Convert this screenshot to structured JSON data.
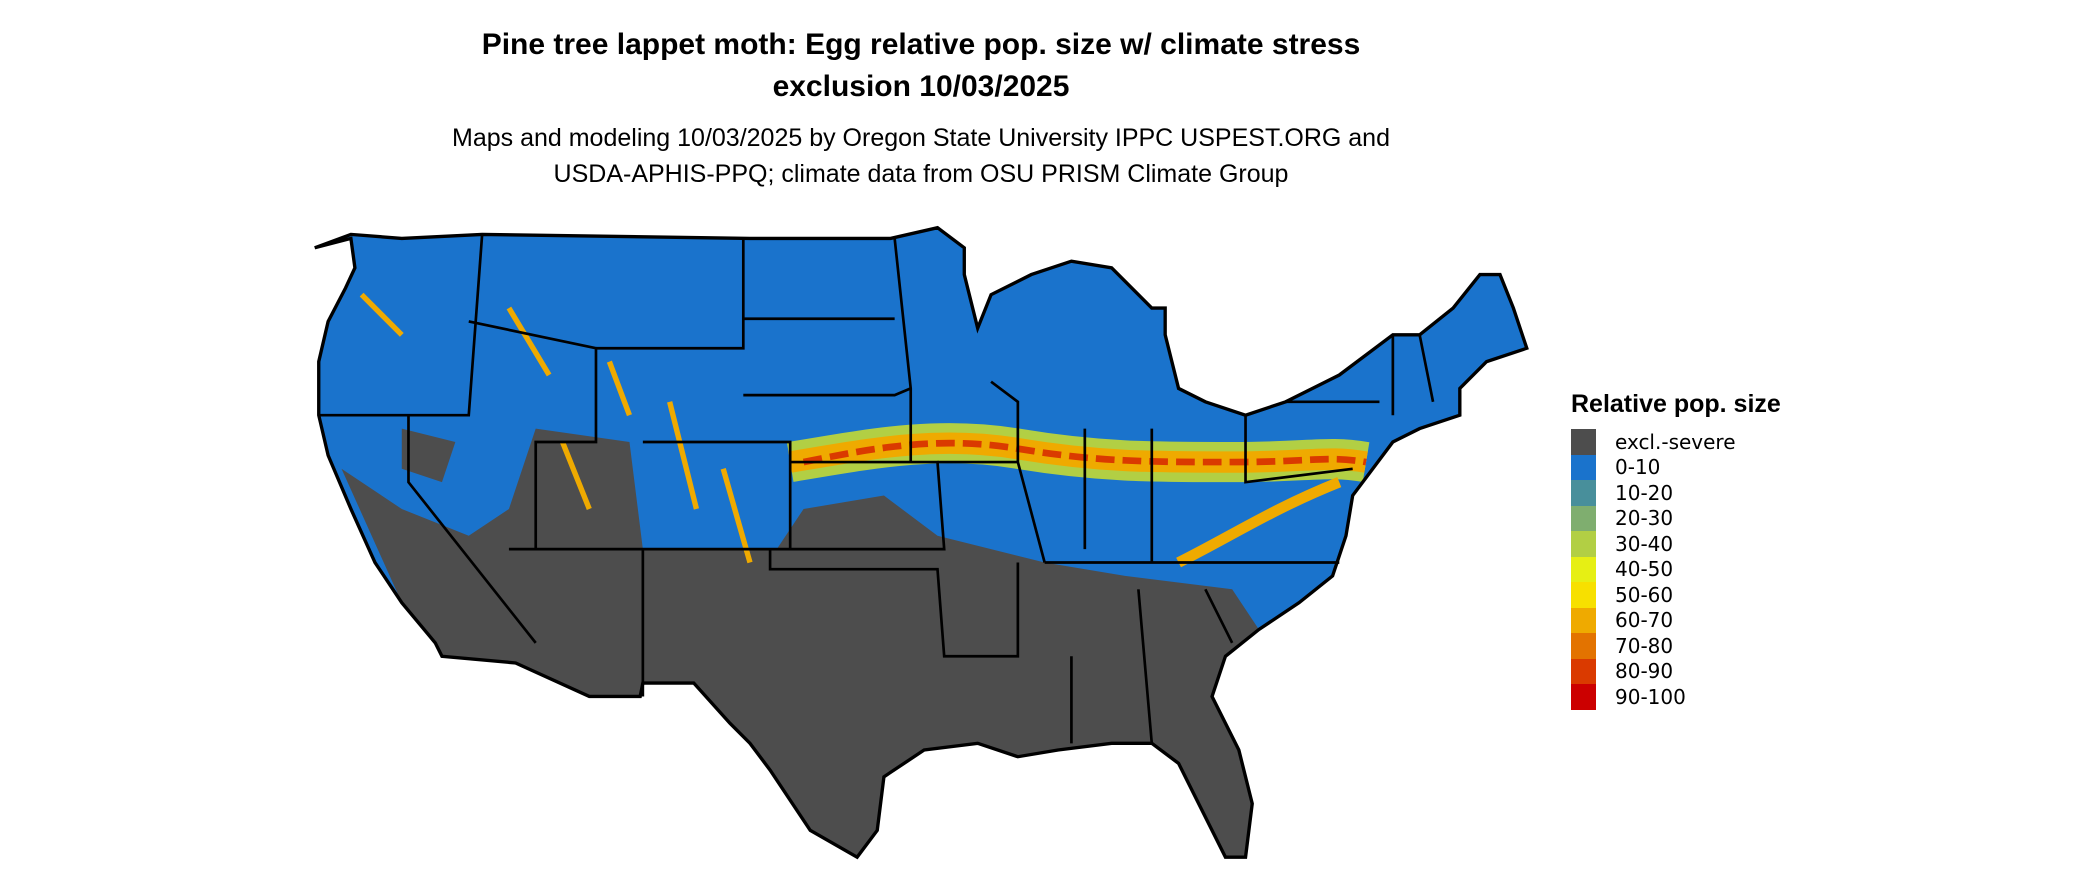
{
  "title": {
    "line1": "Pine tree lappet moth: Egg relative pop. size w/ climate stress",
    "line2": "exclusion 10/03/2025"
  },
  "subtitle": {
    "line1": "Maps and modeling 10/03/2025 by Oregon State University IPPC USPEST.ORG and",
    "line2": "USDA-APHIS-PPQ; climate data from OSU PRISM Climate Group"
  },
  "map": {
    "region": "Contiguous United States",
    "borders": "state boundaries"
  },
  "legend": {
    "title": "Relative pop. size",
    "items": [
      {
        "label": "excl.-severe",
        "color": "#4d4d4d"
      },
      {
        "label": "0-10",
        "color": "#1a73cc"
      },
      {
        "label": "10-20",
        "color": "#488f9b"
      },
      {
        "label": "20-30",
        "color": "#7fae6f"
      },
      {
        "label": "30-40",
        "color": "#b2cf44"
      },
      {
        "label": "40-50",
        "color": "#e6ef14"
      },
      {
        "label": "50-60",
        "color": "#f7e000"
      },
      {
        "label": "60-70",
        "color": "#efaa00"
      },
      {
        "label": "70-80",
        "color": "#e37300"
      },
      {
        "label": "80-90",
        "color": "#da3a00"
      },
      {
        "label": "90-100",
        "color": "#cc0000"
      }
    ]
  }
}
